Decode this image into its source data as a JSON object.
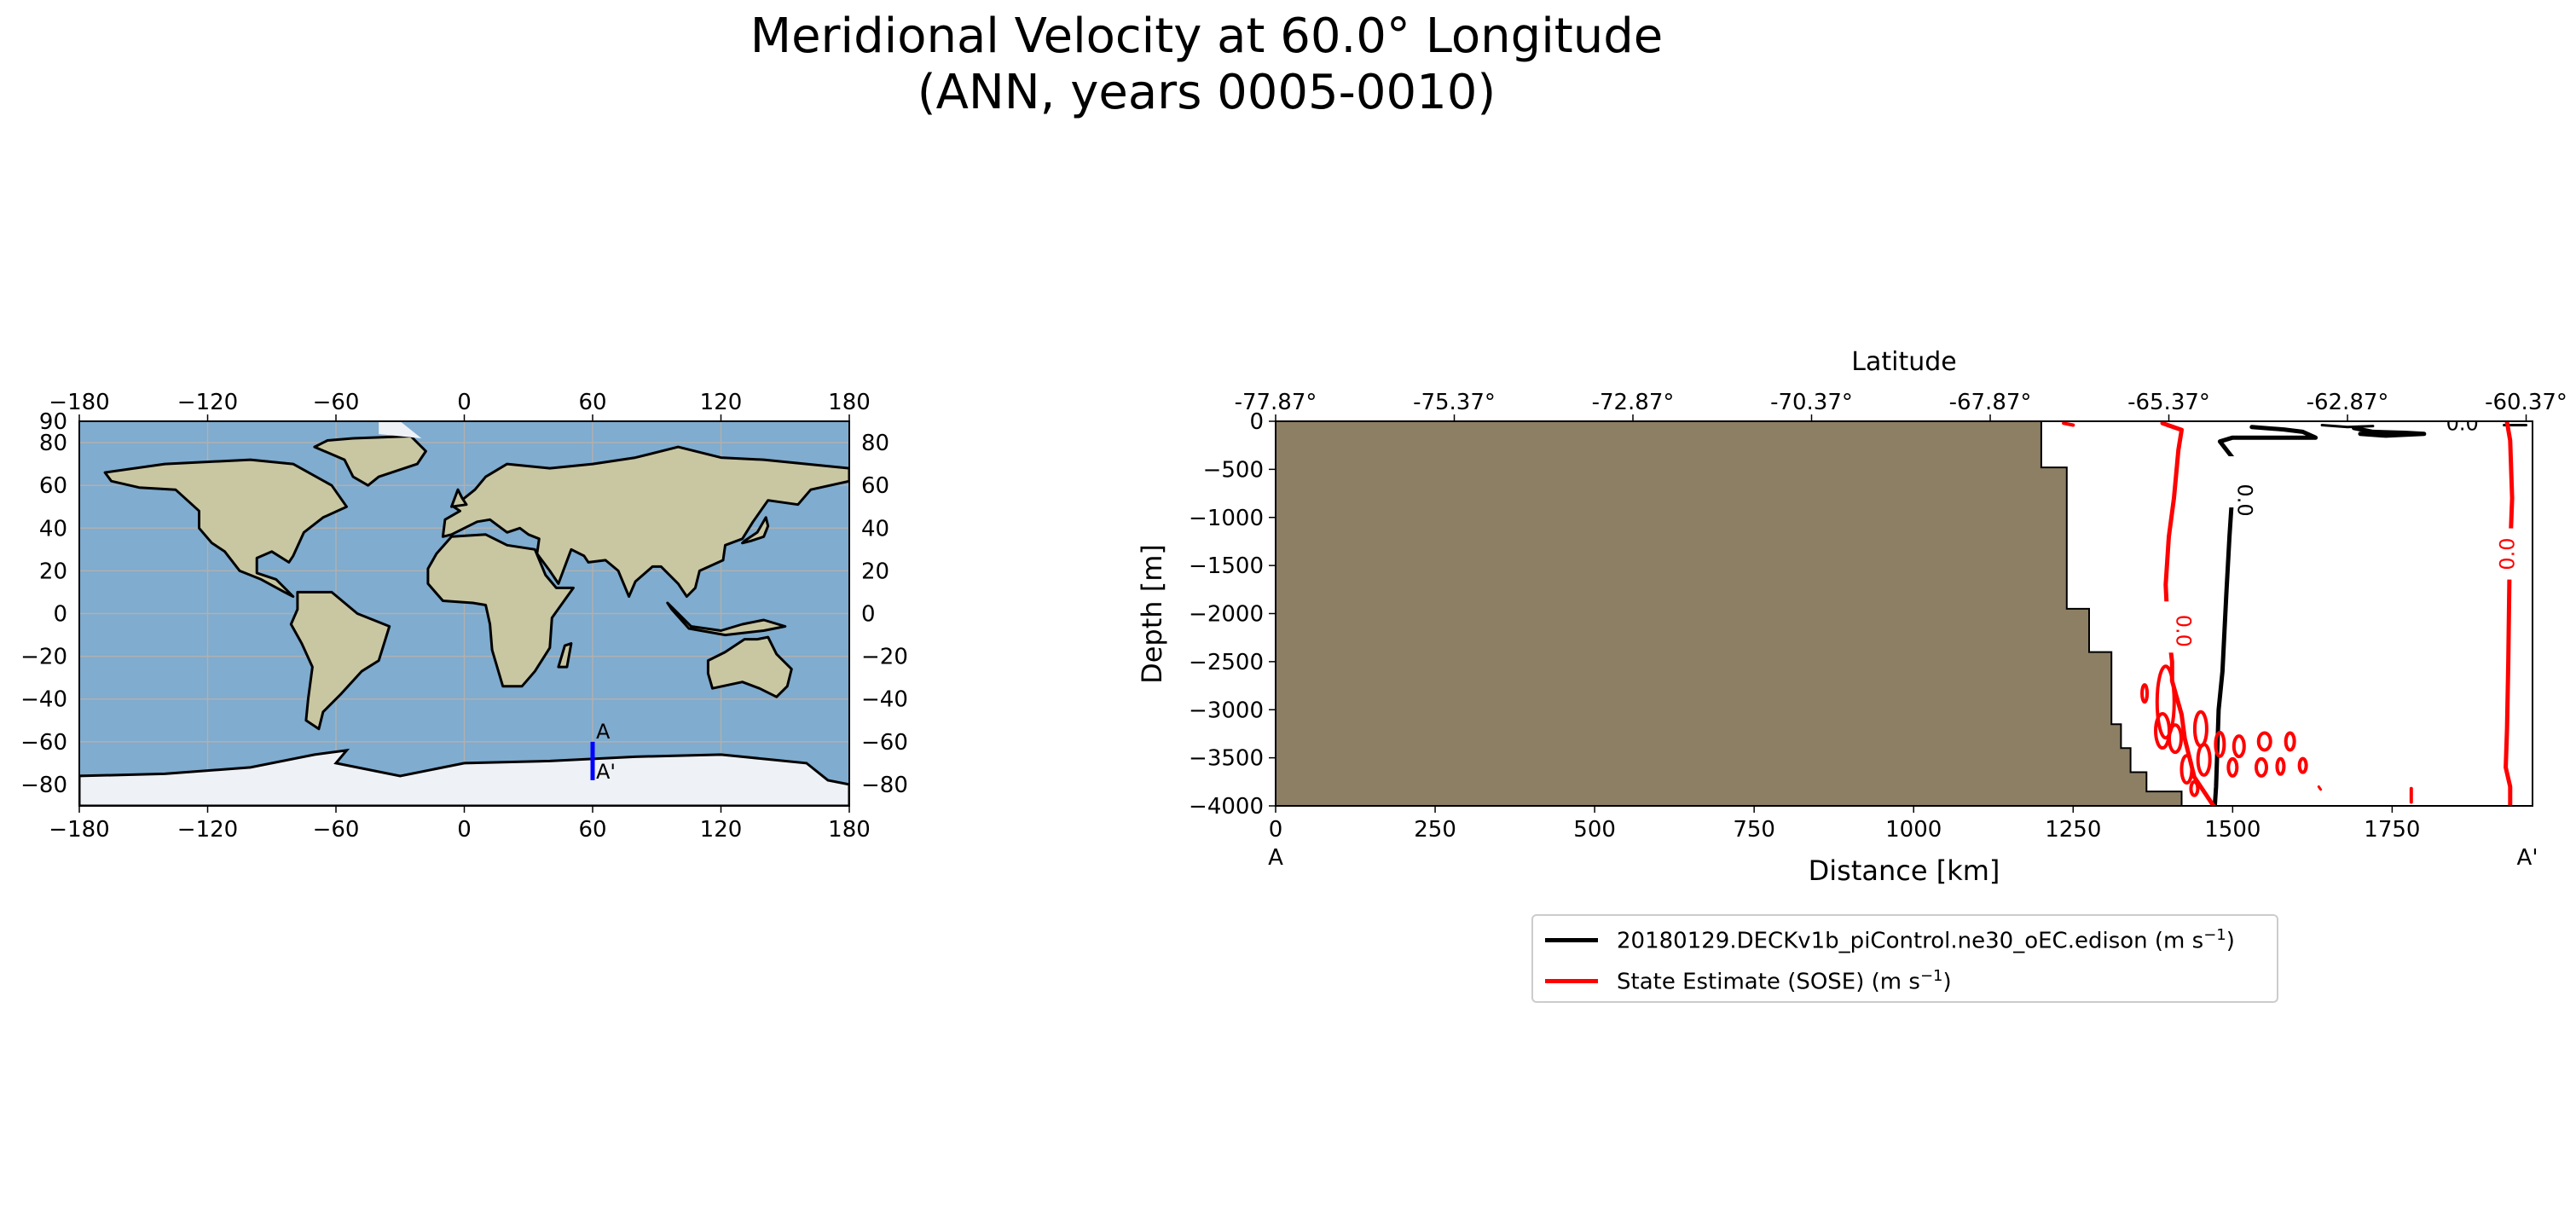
{
  "title": {
    "line1": "Meridional Velocity at 60.0° Longitude",
    "line2": "(ANN, years 0005-0010)"
  },
  "map": {
    "x_ticks": [
      "−180",
      "−120",
      "−60",
      "0",
      "60",
      "120",
      "180"
    ],
    "y_ticks_left": [
      "90",
      "80",
      "60",
      "40",
      "20",
      "0",
      "−20",
      "−40",
      "−60",
      "−80"
    ],
    "y_ticks_right": [
      "80",
      "60",
      "40",
      "20",
      "0",
      "−20",
      "−40",
      "−60",
      "−80"
    ],
    "transect": {
      "lon": 60,
      "lat_start": -60,
      "lat_end": -78,
      "start_label": "A",
      "end_label": "A'",
      "color": "#0000ff"
    },
    "colors": {
      "ocean": "#7faccf",
      "land": "#c9c7a2",
      "ice": "#eef1f5",
      "coast": "#000000",
      "grid": "#b0b0b0"
    }
  },
  "chart_data": {
    "type": "contour",
    "xlabel": "Distance [km]",
    "ylabel": "Depth [m]",
    "top_xlabel": "Latitude",
    "xlim": [
      0,
      1970
    ],
    "ylim": [
      -4000,
      0
    ],
    "x_ticks": [
      "0",
      "250",
      "500",
      "750",
      "1000",
      "1250",
      "1500",
      "1750"
    ],
    "y_ticks": [
      "0",
      "−500",
      "−1000",
      "−1500",
      "−2000",
      "−2500",
      "−3000",
      "−3500",
      "−4000"
    ],
    "top_ticks": [
      "-77.87°",
      "-75.37°",
      "-72.87°",
      "-70.37°",
      "-67.87°",
      "-65.37°",
      "-62.87°",
      "-60.37°"
    ],
    "section_start_label": "A",
    "section_end_label": "A'",
    "contour_label": "0.0",
    "bathymetry": {
      "distance_km": [
        1200,
        1200,
        1240,
        1240,
        1275,
        1275,
        1310,
        1310,
        1325,
        1325,
        1340,
        1340,
        1365,
        1365,
        1390,
        1390,
        1420,
        1420
      ],
      "depth_m": [
        0,
        -480,
        -480,
        -1950,
        -1950,
        -2400,
        -2400,
        -3150,
        -3150,
        -3400,
        -3400,
        -3650,
        -3650,
        -3850,
        -3850,
        -3850,
        -3850,
        -4000
      ]
    },
    "colors": {
      "bathymetry": "#8d7f64",
      "model": "#000000",
      "sose": "#ff0000"
    },
    "series": [
      {
        "name": "20180129.DECKv1b_piControl.ne30_oEC.edison (m s⁻¹)",
        "color": "#000000"
      },
      {
        "name": "State Estimate (SOSE) (m s⁻¹)",
        "color": "#ff0000"
      }
    ]
  },
  "legend": {
    "model_text": "20180129.DECKv1b_piControl.ne30_oEC.edison (m s",
    "sose_text": "State Estimate (SOSE) (m s",
    "exp": "−1",
    "close": ")"
  }
}
